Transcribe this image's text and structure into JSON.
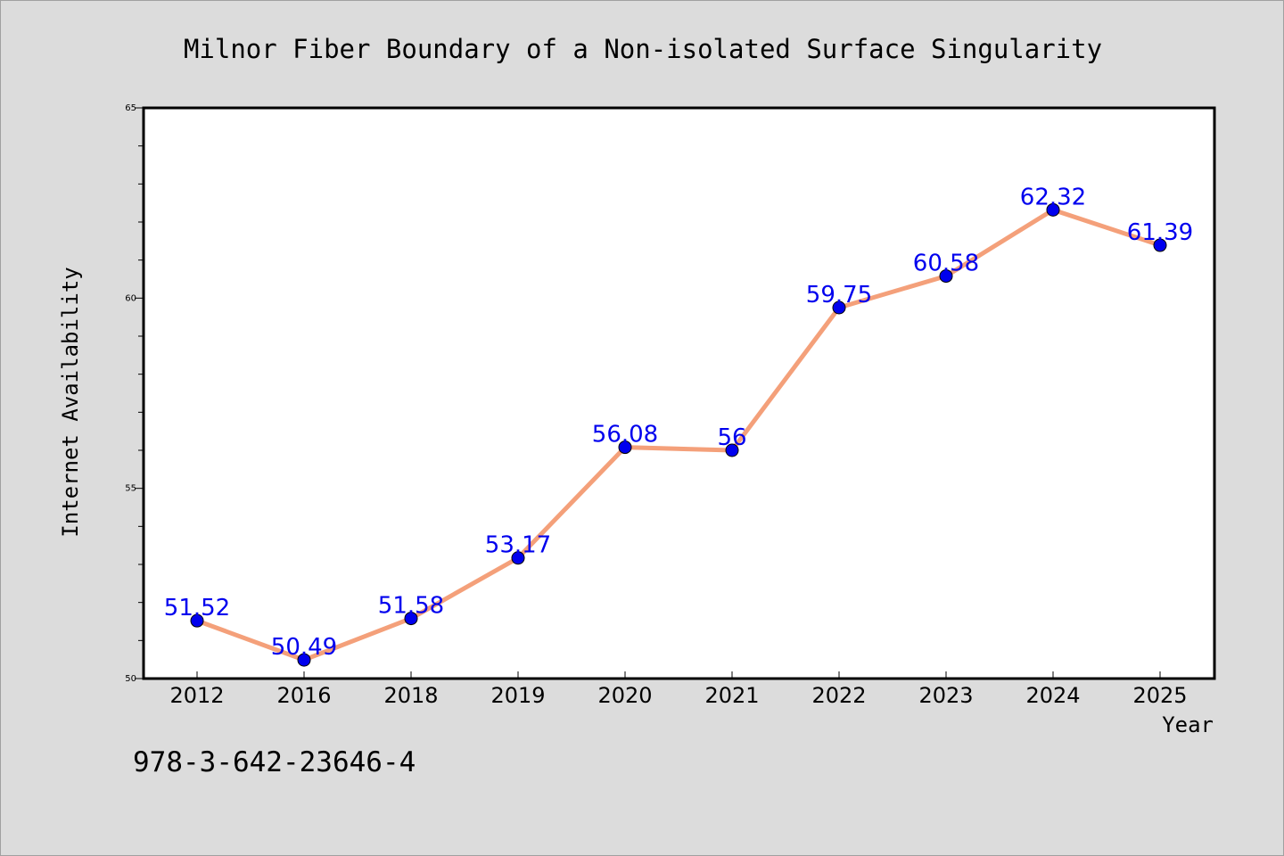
{
  "chart_data": {
    "type": "line",
    "title": "Milnor Fiber Boundary of a Non-isolated Surface Singularity",
    "xlabel": "Year",
    "ylabel": "Internet Availability",
    "categories": [
      "2012",
      "2016",
      "2018",
      "2019",
      "2020",
      "2021",
      "2022",
      "2023",
      "2024",
      "2025"
    ],
    "series": [
      {
        "values": [
          51.52,
          50.49,
          51.58,
          53.17,
          56.08,
          56,
          59.75,
          60.58,
          62.32,
          61.39
        ],
        "labels": [
          "51.52",
          "50.49",
          "51.58",
          "53.17",
          "56.08",
          "56",
          "59.75",
          "60.58",
          "62.32",
          "61.39"
        ],
        "line_color": "#f4a07a",
        "marker_color": "#0000ee",
        "label_color": "#0000ee"
      }
    ],
    "ylim": [
      50,
      65
    ],
    "yticks_major": [
      50,
      55,
      60,
      65
    ],
    "yticks_major_labels": [
      "50",
      "55",
      "60",
      "65"
    ],
    "yticks_minor_step": 1,
    "grid": false,
    "background": "#ffffff",
    "figure_background": "#dcdcdc"
  },
  "footnote": "978-3-642-23646-4"
}
